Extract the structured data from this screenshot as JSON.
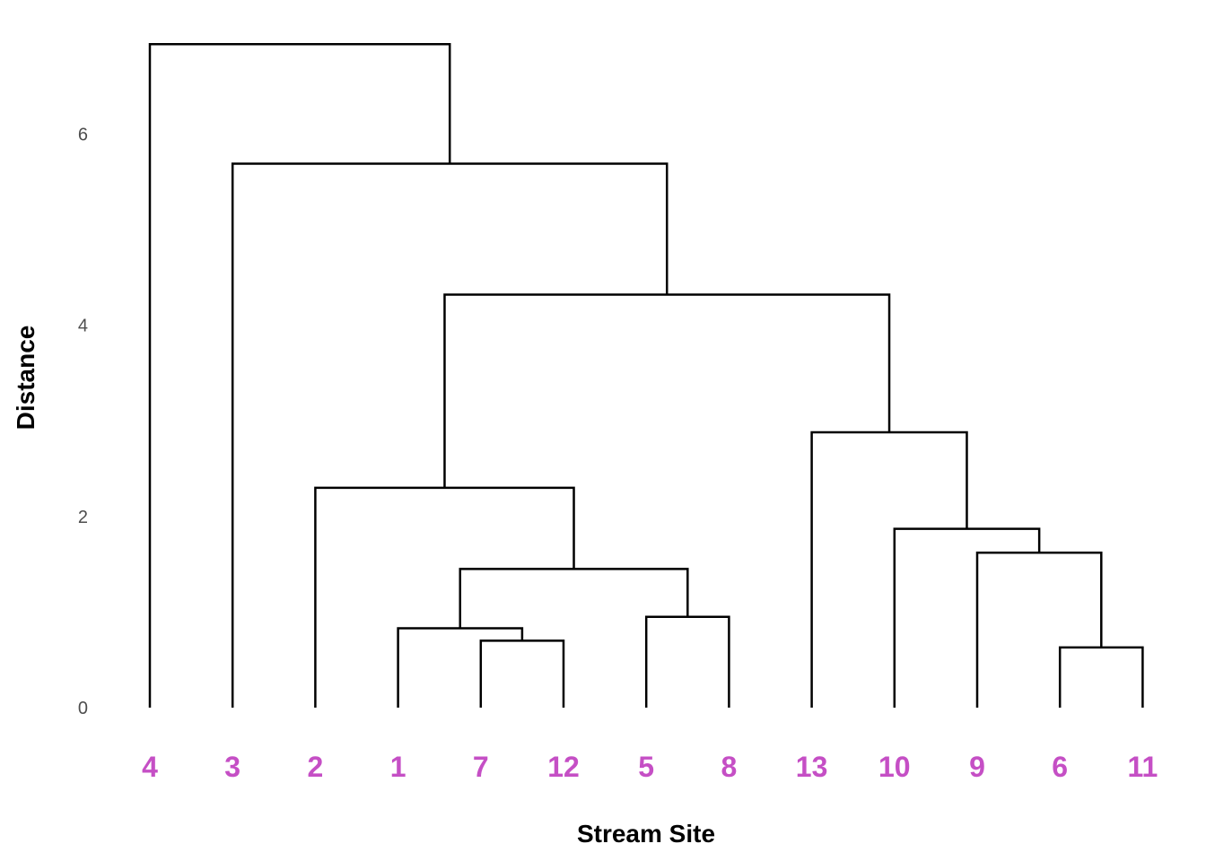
{
  "chart_data": {
    "type": "dendrogram",
    "xlabel": "Stream Site",
    "ylabel": "Distance",
    "yticks": [
      0,
      2,
      4,
      6
    ],
    "ylim": [
      0,
      7.0
    ],
    "leaf_order": [
      "4",
      "3",
      "2",
      "1",
      "7",
      "12",
      "5",
      "8",
      "13",
      "10",
      "9",
      "6",
      "11"
    ],
    "merges": [
      {
        "id": "m1",
        "left": "6",
        "right": "11",
        "height": 0.63
      },
      {
        "id": "m2",
        "left": "7",
        "right": "12",
        "height": 0.7
      },
      {
        "id": "m3",
        "left": "1",
        "right": "m2",
        "height": 0.83
      },
      {
        "id": "m4",
        "left": "5",
        "right": "8",
        "height": 0.95
      },
      {
        "id": "m5",
        "left": "m3",
        "right": "m4",
        "height": 1.45
      },
      {
        "id": "m6",
        "left": "9",
        "right": "m1",
        "height": 1.62
      },
      {
        "id": "m7",
        "left": "10",
        "right": "m6",
        "height": 1.87
      },
      {
        "id": "m8",
        "left": "2",
        "right": "m5",
        "height": 2.3
      },
      {
        "id": "m9",
        "left": "13",
        "right": "m7",
        "height": 2.88
      },
      {
        "id": "m10",
        "left": "m8",
        "right": "m9",
        "height": 4.32
      },
      {
        "id": "m11",
        "left": "3",
        "right": "m10",
        "height": 5.69
      },
      {
        "id": "m12",
        "left": "4",
        "right": "m11",
        "height": 6.94
      }
    ],
    "grid": false,
    "colors": {
      "leaf_label": "#c54fc5",
      "link": "#000000",
      "tick_label": "#4d4d4d"
    }
  }
}
